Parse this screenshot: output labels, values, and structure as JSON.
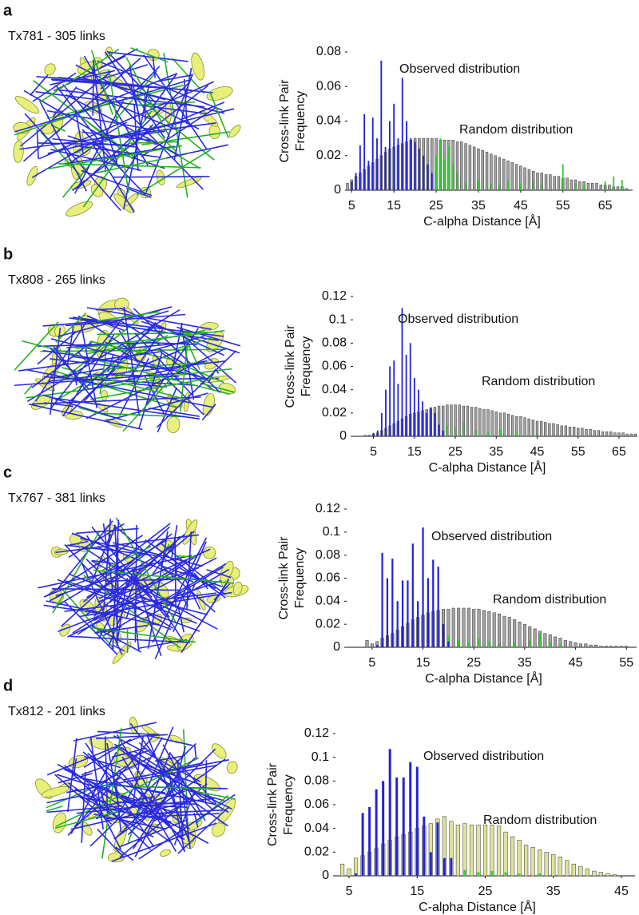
{
  "chart_data": [
    {
      "type": "bar",
      "panel_label": "a",
      "structure_label": "Tx781 - 305 links",
      "ylabel": [
        "Cross-link Pair",
        "Frequency"
      ],
      "xlabel": "C-alpha Distance [Å]",
      "annotations": [
        "Observed distribution",
        "Random distribution"
      ],
      "xlim": [
        4,
        71.5
      ],
      "xticks": [
        5,
        15,
        25,
        35,
        45,
        55,
        65
      ],
      "ylim": [
        0,
        0.08
      ],
      "yticks": [
        0,
        0.02,
        0.04,
        0.06,
        0.08
      ],
      "series": [
        {
          "color": "#a3a3a3",
          "x": [
            4,
            5,
            6,
            7,
            8,
            9,
            10,
            11,
            12,
            13,
            14,
            15,
            16,
            17,
            18,
            19,
            20,
            21,
            22,
            23,
            24,
            25,
            26,
            27,
            28,
            29,
            30,
            31,
            32,
            33,
            34,
            35,
            36,
            37,
            38,
            39,
            40,
            41,
            42,
            43,
            44,
            45,
            46,
            47,
            48,
            49,
            50,
            51,
            52,
            53,
            54,
            55,
            56,
            57,
            58,
            59,
            60,
            61,
            62,
            63,
            64,
            65,
            66,
            67,
            68,
            69,
            70
          ],
          "values": [
            0.004,
            0.006,
            0.008,
            0.01,
            0.012,
            0.014,
            0.016,
            0.018,
            0.02,
            0.022,
            0.024,
            0.025,
            0.026,
            0.027,
            0.028,
            0.029,
            0.03,
            0.03,
            0.03,
            0.03,
            0.03,
            0.03,
            0.029,
            0.029,
            0.029,
            0.029,
            0.028,
            0.028,
            0.027,
            0.026,
            0.025,
            0.024,
            0.023,
            0.022,
            0.021,
            0.02,
            0.019,
            0.018,
            0.017,
            0.016,
            0.015,
            0.014,
            0.013,
            0.012,
            0.011,
            0.01,
            0.01,
            0.009,
            0.009,
            0.008,
            0.008,
            0.007,
            0.007,
            0.006,
            0.006,
            0.005,
            0.005,
            0.004,
            0.004,
            0.004,
            0.003,
            0.003,
            0.003,
            0.002,
            0.002,
            0.002,
            0.001
          ]
        },
        {
          "color": "#33cc33",
          "x": [
            25,
            26,
            27,
            28,
            29,
            30,
            32,
            35,
            38,
            40,
            42,
            45,
            48,
            50,
            55,
            58,
            60,
            65,
            67,
            69
          ],
          "values": [
            0.02,
            0.03,
            0.018,
            0.026,
            0.015,
            0.01,
            0.005,
            0.006,
            0.004,
            0.003,
            0.006,
            0.004,
            0.005,
            0.003,
            0.015,
            0.004,
            0.003,
            0.005,
            0.008,
            0.006
          ]
        },
        {
          "color": "#2222dd",
          "x": [
            5,
            6,
            7,
            8,
            9,
            10,
            11,
            12,
            13,
            14,
            15,
            16,
            17,
            18,
            19,
            20,
            21,
            22,
            23,
            24
          ],
          "values": [
            0.005,
            0.01,
            0.026,
            0.044,
            0.017,
            0.042,
            0.03,
            0.075,
            0.025,
            0.04,
            0.05,
            0.03,
            0.065,
            0.04,
            0.03,
            0.028,
            0.024,
            0.02,
            0.015,
            0.01
          ]
        }
      ]
    },
    {
      "type": "bar",
      "panel_label": "b",
      "structure_label": "Tx808 - 265 links",
      "ylabel": [
        "Cross-link Pair",
        "Frequency"
      ],
      "xlabel": "C-alpha Distance [Å]",
      "annotations": [
        "Observed distribution",
        "Random distribution"
      ],
      "xlim": [
        0,
        69.5
      ],
      "xticks": [
        5,
        15,
        25,
        35,
        45,
        55,
        65
      ],
      "ylim": [
        0,
        0.12
      ],
      "yticks": [
        0,
        0.02,
        0.04,
        0.06,
        0.08,
        0.1,
        0.12
      ],
      "series": [
        {
          "color": "#a3a3a3",
          "x": [
            3,
            4,
            5,
            6,
            7,
            8,
            9,
            10,
            11,
            12,
            13,
            14,
            15,
            16,
            17,
            18,
            19,
            20,
            21,
            22,
            23,
            24,
            25,
            26,
            27,
            28,
            29,
            30,
            31,
            32,
            33,
            34,
            35,
            36,
            37,
            38,
            39,
            40,
            41,
            42,
            43,
            44,
            45,
            46,
            47,
            48,
            49,
            50,
            51,
            52,
            53,
            54,
            55,
            56,
            57,
            58,
            59,
            60,
            61,
            62,
            63,
            64,
            65,
            66,
            67,
            68,
            69
          ],
          "values": [
            0.001,
            0.001,
            0.002,
            0.003,
            0.005,
            0.007,
            0.009,
            0.011,
            0.013,
            0.015,
            0.017,
            0.019,
            0.02,
            0.021,
            0.022,
            0.023,
            0.024,
            0.025,
            0.026,
            0.026,
            0.027,
            0.027,
            0.027,
            0.027,
            0.026,
            0.026,
            0.025,
            0.025,
            0.024,
            0.023,
            0.023,
            0.022,
            0.021,
            0.02,
            0.02,
            0.019,
            0.018,
            0.017,
            0.017,
            0.016,
            0.015,
            0.014,
            0.013,
            0.013,
            0.012,
            0.011,
            0.011,
            0.01,
            0.009,
            0.009,
            0.008,
            0.008,
            0.007,
            0.007,
            0.006,
            0.006,
            0.005,
            0.005,
            0.004,
            0.004,
            0.004,
            0.003,
            0.003,
            0.003,
            0.002,
            0.002,
            0.002
          ]
        },
        {
          "color": "#33cc33",
          "x": [
            23,
            25,
            27,
            30,
            33,
            36,
            40,
            45
          ],
          "values": [
            0.01,
            0.008,
            0.012,
            0.005,
            0.004,
            0.006,
            0.003,
            0.002
          ]
        },
        {
          "color": "#2222dd",
          "x": [
            5,
            6,
            7,
            8,
            9,
            10,
            11,
            12,
            13,
            14,
            15,
            16,
            17,
            18,
            19,
            20,
            21,
            22
          ],
          "values": [
            0.003,
            0.005,
            0.02,
            0.04,
            0.06,
            0.065,
            0.045,
            0.11,
            0.07,
            0.08,
            0.05,
            0.04,
            0.03,
            0.02,
            0.025,
            0.02,
            0.01,
            0.005
          ]
        }
      ]
    },
    {
      "type": "bar",
      "panel_label": "c",
      "structure_label": "Tx767 - 381 links",
      "ylabel": [
        "Cross-link Pair",
        "Frequency"
      ],
      "xlabel": "C-alpha Distance [Å]",
      "annotations": [
        "Observed distribution",
        "Random distribution"
      ],
      "xlim": [
        0,
        57
      ],
      "xticks": [
        5,
        15,
        25,
        35,
        45,
        55
      ],
      "ylim": [
        0,
        0.12
      ],
      "yticks": [
        0,
        0.02,
        0.04,
        0.06,
        0.08,
        0.1,
        0.12
      ],
      "series": [
        {
          "color": "#a3a3a3",
          "x": [
            4,
            5,
            6,
            7,
            8,
            9,
            10,
            11,
            12,
            13,
            14,
            15,
            16,
            17,
            18,
            19,
            20,
            21,
            22,
            23,
            24,
            25,
            26,
            27,
            28,
            29,
            30,
            31,
            32,
            33,
            34,
            35,
            36,
            37,
            38,
            39,
            40,
            41,
            42,
            43,
            44,
            45,
            46,
            47,
            48,
            49,
            50,
            51,
            52,
            53,
            54,
            55
          ],
          "values": [
            0.006,
            0.003,
            0.005,
            0.008,
            0.01,
            0.012,
            0.015,
            0.018,
            0.021,
            0.024,
            0.026,
            0.028,
            0.03,
            0.031,
            0.032,
            0.033,
            0.033,
            0.034,
            0.034,
            0.034,
            0.034,
            0.033,
            0.033,
            0.032,
            0.031,
            0.03,
            0.029,
            0.027,
            0.026,
            0.024,
            0.022,
            0.02,
            0.018,
            0.016,
            0.014,
            0.012,
            0.011,
            0.009,
            0.008,
            0.006,
            0.005,
            0.004,
            0.003,
            0.003,
            0.002,
            0.002,
            0.001,
            0.001,
            0.001,
            0.001,
            0.001,
            0.001
          ]
        },
        {
          "color": "#33cc33",
          "x": [
            20,
            22,
            24,
            26,
            28,
            30,
            33,
            36,
            38,
            40,
            42
          ],
          "values": [
            0.01,
            0.006,
            0.004,
            0.008,
            0.005,
            0.003,
            0.004,
            0.006,
            0.012,
            0.004,
            0.003
          ]
        },
        {
          "color": "#2222dd",
          "x": [
            6,
            7,
            8,
            9,
            10,
            11,
            12,
            13,
            14,
            15,
            16,
            17,
            18,
            19,
            20
          ],
          "values": [
            0.002,
            0.082,
            0.06,
            0.077,
            0.04,
            0.058,
            0.058,
            0.09,
            0.04,
            0.104,
            0.06,
            0.076,
            0.07,
            0.02,
            0.005
          ]
        }
      ]
    },
    {
      "type": "bar",
      "panel_label": "d",
      "structure_label": "Tx812 - 201 links",
      "ylabel": [
        "Cross-link Pair",
        "Frequency"
      ],
      "xlabel": "C-alpha Distance [Å]",
      "annotations": [
        "Observed distribution",
        "Random distribution"
      ],
      "xlim": [
        3,
        47
      ],
      "xticks": [
        5,
        15,
        25,
        35,
        45
      ],
      "ylim": [
        0,
        0.12
      ],
      "yticks": [
        0,
        0.02,
        0.04,
        0.06,
        0.08,
        0.1,
        0.12
      ],
      "series": [
        {
          "color": "#dfe39a",
          "x": [
            4,
            5,
            6,
            7,
            8,
            9,
            10,
            11,
            12,
            13,
            14,
            15,
            16,
            17,
            18,
            19,
            20,
            21,
            22,
            23,
            24,
            25,
            26,
            27,
            28,
            29,
            30,
            31,
            32,
            33,
            34,
            35,
            36,
            37,
            38,
            39,
            40,
            41,
            42,
            43,
            44
          ],
          "values": [
            0.01,
            0.006,
            0.015,
            0.017,
            0.02,
            0.023,
            0.027,
            0.03,
            0.033,
            0.035,
            0.037,
            0.04,
            0.042,
            0.044,
            0.048,
            0.05,
            0.046,
            0.043,
            0.044,
            0.043,
            0.043,
            0.043,
            0.043,
            0.042,
            0.037,
            0.033,
            0.03,
            0.026,
            0.024,
            0.022,
            0.02,
            0.018,
            0.016,
            0.013,
            0.01,
            0.008,
            0.006,
            0.004,
            0.003,
            0.002,
            0.001
          ]
        },
        {
          "color": "#33cc33",
          "x": [
            22,
            24,
            26,
            28,
            30,
            33
          ],
          "values": [
            0.005,
            0.003,
            0.004,
            0.003,
            0.002,
            0.002
          ]
        },
        {
          "color": "#2222dd",
          "x": [
            6,
            7,
            8,
            9,
            10,
            11,
            12,
            13,
            14,
            15,
            16,
            17,
            18,
            19,
            20
          ],
          "values": [
            0.002,
            0.053,
            0.058,
            0.073,
            0.08,
            0.107,
            0.083,
            0.083,
            0.096,
            0.092,
            0.05,
            0.02,
            0.045,
            0.015,
            0.015
          ]
        }
      ]
    }
  ]
}
